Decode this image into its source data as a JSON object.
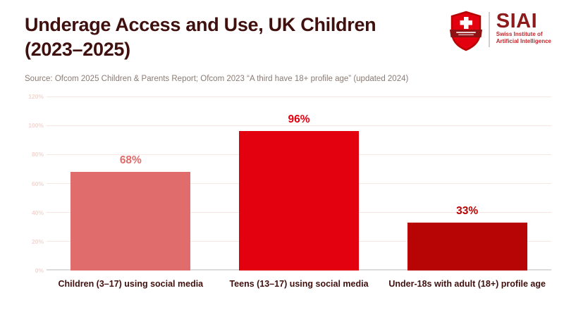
{
  "header": {
    "title_line1": "Underage Access and Use, UK Children",
    "title_line2": "(2023–2025)",
    "source": "Source: Ofcom 2025 Children & Parents Report; Ofcom 2023 “A third have 18+ profile age” (updated 2024)"
  },
  "logo": {
    "wordmark": "SIAI",
    "subtitle_line1": "Swiss Institute of",
    "subtitle_line2": "Artificial Intelligence",
    "shield_icon": "swiss-shield-icon",
    "colors": {
      "shield": "#e3000f",
      "shield_outline": "#b70404",
      "banner": "#8f1113",
      "wordmark": "#8d1b1b",
      "subtitle": "#c0272d",
      "divider": "#cfcfcf"
    }
  },
  "chart_data": {
    "type": "bar",
    "title": "Underage Access and Use, UK Children (2023–2025)",
    "categories": [
      "Children (3–17) using social media",
      "Teens (13–17) using social media",
      "Under-18s with adult (18+) profile age"
    ],
    "values": [
      68,
      96,
      33
    ],
    "value_labels": [
      "68%",
      "96%",
      "33%"
    ],
    "bar_colors": [
      "#e06c6c",
      "#e3000f",
      "#b70404"
    ],
    "xlabel": "",
    "ylabel": "",
    "ylim": [
      0,
      120
    ],
    "yticks": [
      0,
      20,
      40,
      60,
      80,
      100,
      120
    ],
    "ytick_labels": [
      "0%",
      "20%",
      "40%",
      "60%",
      "80%",
      "100%",
      "120%"
    ],
    "grid": true,
    "legend": false
  },
  "colors": {
    "title": "#3f100e",
    "source": "#8a7b74",
    "ytick_label": "#f3d6d0",
    "gridline": "#f8e6e2",
    "baseline": "#dcdcdc",
    "xtick_label": "#3f100e",
    "background": "#ffffff"
  }
}
